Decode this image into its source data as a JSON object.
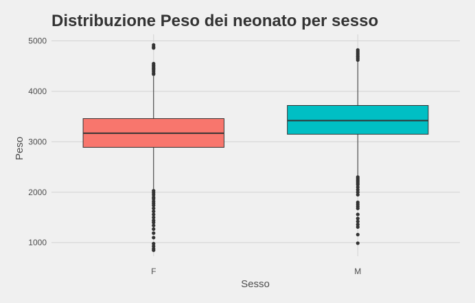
{
  "chart_data": {
    "type": "boxplot",
    "title": "Distribuzione Peso dei neonato per sesso",
    "xlabel": "Sesso",
    "ylabel": "Peso",
    "ylim": [
      730,
      5130
    ],
    "yticks": [
      1000,
      2000,
      3000,
      4000,
      5000
    ],
    "ytick_labels": [
      "1000",
      "2000",
      "3000",
      "4000",
      "5000"
    ],
    "grid": true,
    "categories": [
      "F",
      "M"
    ],
    "boxes": [
      {
        "category": "F",
        "color": "#f8766d",
        "whisker_low": 2050,
        "q1": 2890,
        "median": 3170,
        "q3": 3460,
        "whisker_high": 4300,
        "outliers": [
          4920,
          4880,
          4860,
          4550,
          4520,
          4500,
          4470,
          4450,
          4430,
          4400,
          4360,
          4340,
          2030,
          1990,
          1950,
          1900,
          1870,
          1820,
          1780,
          1740,
          1680,
          1620,
          1560,
          1500,
          1440,
          1400,
          1340,
          1270,
          1190,
          1100,
          980,
          930,
          880,
          850
        ]
      },
      {
        "category": "M",
        "color": "#00bfc4",
        "whisker_low": 2320,
        "q1": 3150,
        "median": 3420,
        "q3": 3720,
        "whisker_high": 4590,
        "outliers": [
          4820,
          4790,
          4760,
          4730,
          4700,
          4680,
          4650,
          4620,
          2300,
          2270,
          2240,
          2210,
          2180,
          2150,
          2100,
          2050,
          2000,
          1950,
          1800,
          1760,
          1720,
          1680,
          1560,
          1480,
          1420,
          1360,
          1310,
          1160,
          990
        ]
      }
    ]
  }
}
